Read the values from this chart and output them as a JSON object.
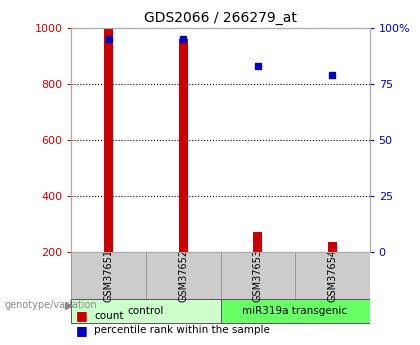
{
  "title": "GDS2066 / 266279_at",
  "samples": [
    "GSM37651",
    "GSM37652",
    "GSM37653",
    "GSM37654"
  ],
  "count_values": [
    1000,
    960,
    270,
    235
  ],
  "percentile_values": [
    95,
    95,
    83,
    79
  ],
  "bar_color": "#cc0000",
  "dot_color": "#0000cc",
  "ylim_left": [
    200,
    1000
  ],
  "ylim_right": [
    0,
    100
  ],
  "yticks_left": [
    200,
    400,
    600,
    800,
    1000
  ],
  "yticks_right": [
    0,
    25,
    50,
    75,
    100
  ],
  "yticklabels_right": [
    "0",
    "25",
    "50",
    "75",
    "100%"
  ],
  "bar_width": 0.12,
  "groups": [
    {
      "label": "control",
      "indices": [
        0,
        1
      ],
      "color": "#ccffcc"
    },
    {
      "label": "miR319a transgenic",
      "indices": [
        2,
        3
      ],
      "color": "#66ff66"
    }
  ],
  "group_label_text": "genotype/variation",
  "legend_items": [
    {
      "color": "#cc0000",
      "label": "count"
    },
    {
      "color": "#0000cc",
      "label": "percentile rank within the sample"
    }
  ],
  "background_color": "#ffffff",
  "plot_bg_color": "#ffffff",
  "grid_color": "#000000",
  "left_tick_color": "#cc0000",
  "right_tick_color": "#0000cc",
  "gray_box_color": "#cccccc",
  "gray_box_edge": "#999999"
}
